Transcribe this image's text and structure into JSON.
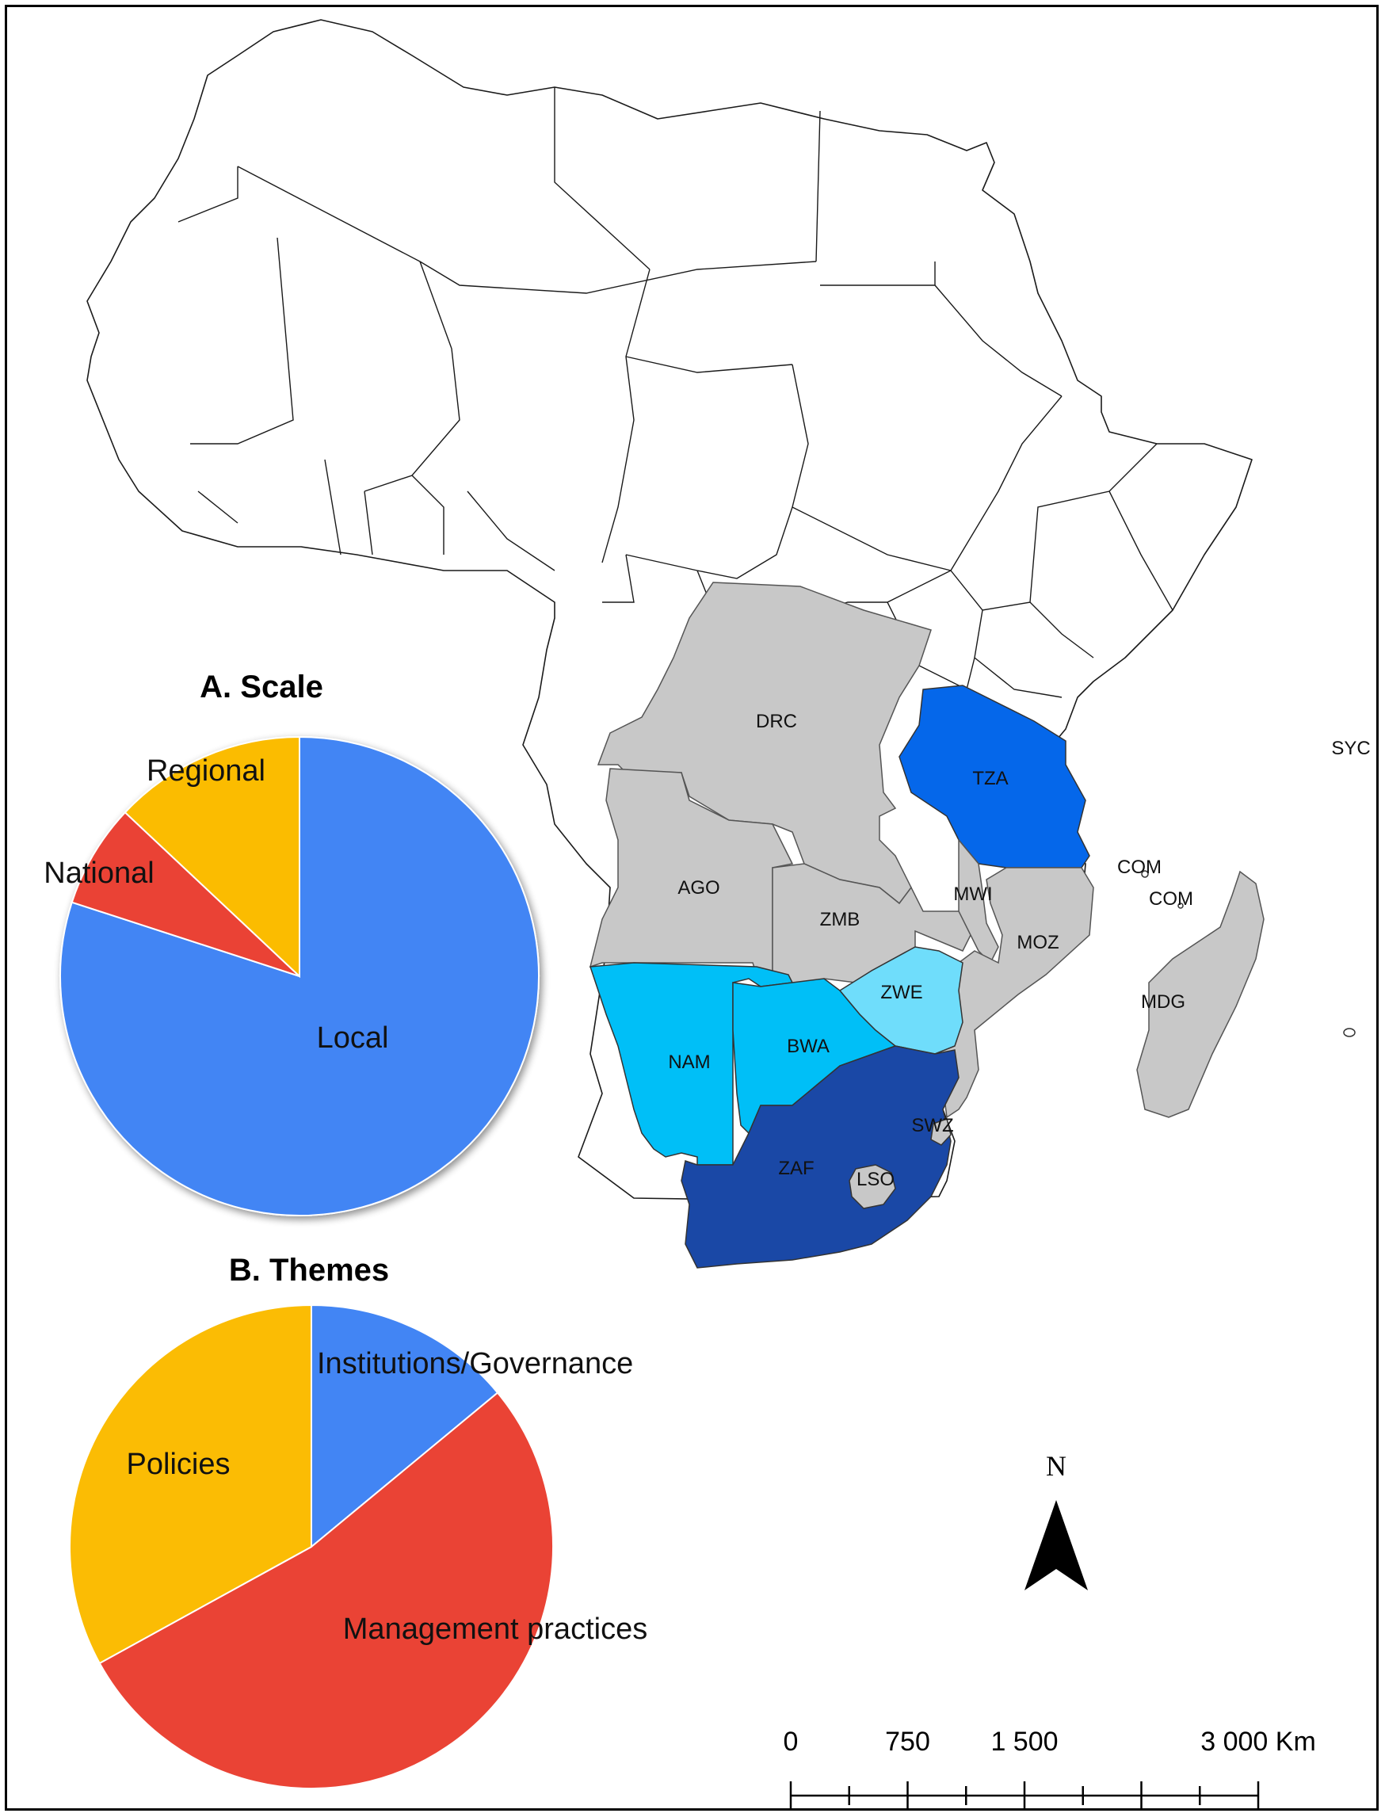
{
  "map": {
    "country_labels": [
      {
        "code": "DRC"
      },
      {
        "code": "TZA"
      },
      {
        "code": "SYC"
      },
      {
        "code": "AGO"
      },
      {
        "code": "MWI"
      },
      {
        "code": "ZMB"
      },
      {
        "code": "COM"
      },
      {
        "code": "COM"
      },
      {
        "code": "MOZ"
      },
      {
        "code": "ZWE"
      },
      {
        "code": "MDG"
      },
      {
        "code": "NAM"
      },
      {
        "code": "BWA"
      },
      {
        "code": "SWZ"
      },
      {
        "code": "ZAF"
      },
      {
        "code": "LSO"
      }
    ],
    "colors": {
      "ZAF": "#1a48a6",
      "TZA": "#0567ea",
      "NAM": "#00bff7",
      "BWA": "#00bff7",
      "ZWE": "#6fddfb",
      "grey": "#c8c8c8",
      "other": "#ffffff"
    }
  },
  "chart_data": [
    {
      "type": "pie",
      "title": "A. Scale",
      "slices": [
        {
          "label": "Local",
          "value": 80,
          "color": "#4285f4"
        },
        {
          "label": "National",
          "value": 7,
          "color": "#ea4335"
        },
        {
          "label": "Regional",
          "value": 13,
          "color": "#fbbc04"
        }
      ]
    },
    {
      "type": "pie",
      "title": "B. Themes",
      "slices": [
        {
          "label": "Institutions/Governance",
          "value": 14,
          "color": "#4285f4"
        },
        {
          "label": "Management practices",
          "value": 53,
          "color": "#ea4335"
        },
        {
          "label": "Policies",
          "value": 33,
          "color": "#fbbc04"
        }
      ]
    }
  ],
  "north_arrow": {
    "label": "N"
  },
  "scale_bar": {
    "ticks": [
      {
        "label": "0",
        "value": 0
      },
      {
        "label": "750",
        "value": 750
      },
      {
        "label": "1 500",
        "value": 1500
      },
      {
        "label": "3 000 Km",
        "value": 3000
      }
    ],
    "max_value": 3000
  }
}
